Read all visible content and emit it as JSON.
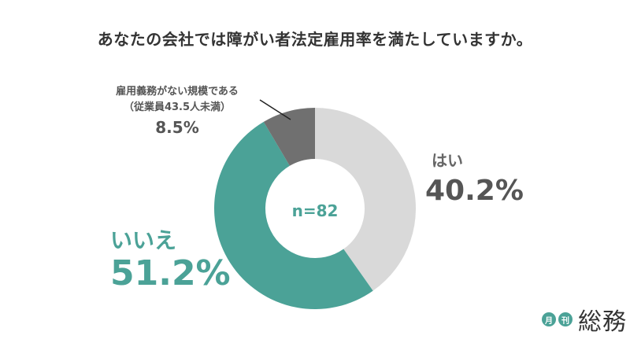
{
  "title": "あなたの会社では障がい者法定雇用率を満たしていますか。",
  "center_label": "n=82",
  "labels": {
    "no_obligation_line1": "雇用義務がない規模である",
    "no_obligation_line2": "（従業員43.5人未満）",
    "no_obligation_pct": "8.5%",
    "yes": "はい",
    "yes_pct": "40.2%",
    "no": "いいえ",
    "no_pct": "51.2%"
  },
  "logo": {
    "badge1": "月",
    "badge2": "刊",
    "text": "総務"
  },
  "colors": {
    "yes": "#d9d9d9",
    "no": "#4ba297",
    "no_obligation": "#707070"
  },
  "chart_data": {
    "type": "pie",
    "donut": true,
    "n": 82,
    "categories": [
      "はい",
      "いいえ",
      "雇用義務がない規模である（従業員43.5人未満）"
    ],
    "values": [
      40.2,
      51.2,
      8.5
    ],
    "unit": "%"
  }
}
